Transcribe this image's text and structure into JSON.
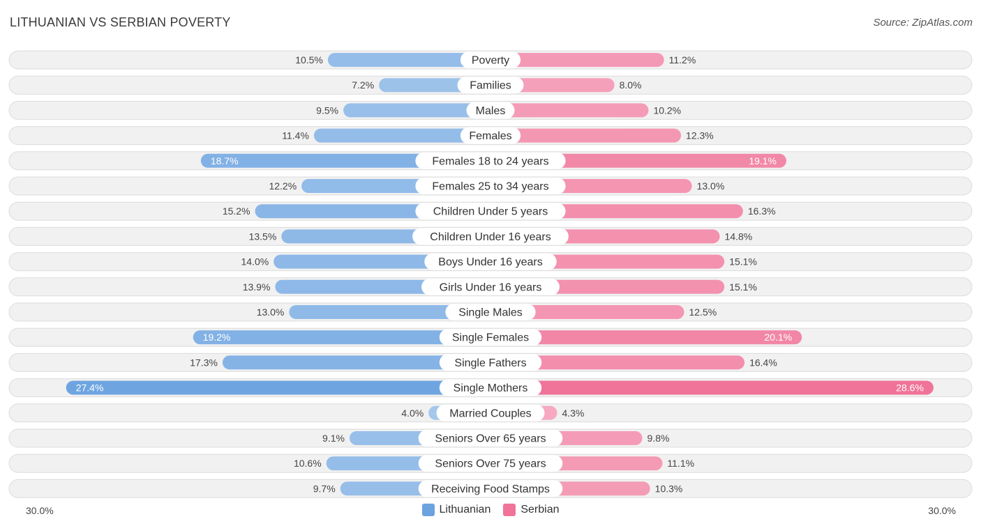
{
  "title": "LITHUANIAN VS SERBIAN POVERTY",
  "source": "Source: ZipAtlas.com",
  "axis": {
    "left_label": "30.0%",
    "right_label": "30.0%"
  },
  "legend": [
    {
      "name": "Lithuanian",
      "color": "#6ba3e0"
    },
    {
      "name": "Serbian",
      "color": "#f07399"
    }
  ],
  "chart_data": {
    "type": "bar",
    "orientation": "horizontal-diverging",
    "title": "LITHUANIAN VS SERBIAN POVERTY",
    "xlim": [
      -30,
      30
    ],
    "categories": [
      "Poverty",
      "Families",
      "Males",
      "Females",
      "Females 18 to 24 years",
      "Females 25 to 34 years",
      "Children Under 5 years",
      "Children Under 16 years",
      "Boys Under 16 years",
      "Girls Under 16 years",
      "Single Males",
      "Single Females",
      "Single Fathers",
      "Single Mothers",
      "Married Couples",
      "Seniors Over 65 years",
      "Seniors Over 75 years",
      "Receiving Food Stamps"
    ],
    "series": [
      {
        "name": "Lithuanian",
        "values": [
          10.5,
          7.2,
          9.5,
          11.4,
          18.7,
          12.2,
          15.2,
          13.5,
          14.0,
          13.9,
          13.0,
          19.2,
          17.3,
          27.4,
          4.0,
          9.1,
          10.6,
          9.7
        ],
        "labels": [
          "10.5%",
          "7.2%",
          "9.5%",
          "11.4%",
          "18.7%",
          "12.2%",
          "15.2%",
          "13.5%",
          "14.0%",
          "13.9%",
          "13.0%",
          "19.2%",
          "17.3%",
          "27.4%",
          "4.0%",
          "9.1%",
          "10.6%",
          "9.7%"
        ]
      },
      {
        "name": "Serbian",
        "values": [
          11.2,
          8.0,
          10.2,
          12.3,
          19.1,
          13.0,
          16.3,
          14.8,
          15.1,
          15.1,
          12.5,
          20.1,
          16.4,
          28.6,
          4.3,
          9.8,
          11.1,
          10.3
        ],
        "labels": [
          "11.2%",
          "8.0%",
          "10.2%",
          "12.3%",
          "19.1%",
          "13.0%",
          "16.3%",
          "14.8%",
          "15.1%",
          "15.1%",
          "12.5%",
          "20.1%",
          "16.4%",
          "28.6%",
          "4.3%",
          "9.8%",
          "11.1%",
          "10.3%"
        ]
      }
    ]
  }
}
